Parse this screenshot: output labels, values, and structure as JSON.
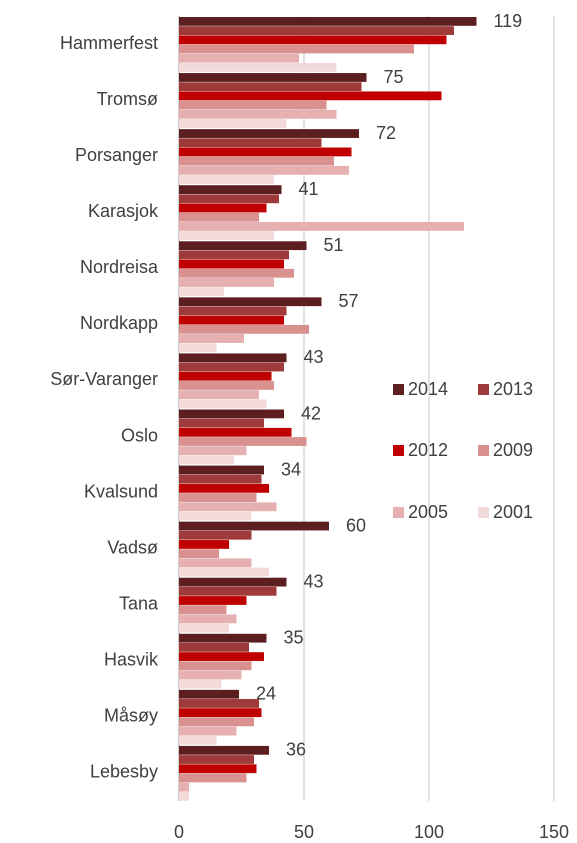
{
  "chart_data": {
    "type": "hbar",
    "categories": [
      "Hammerfest",
      "Tromsø",
      "Porsanger",
      "Karasjok",
      "Nordreisa",
      "Nordkapp",
      "Sør-Varanger",
      "Oslo",
      "Kvalsund",
      "Vadsø",
      "Tana",
      "Hasvik",
      "Måsøy",
      "Lebesby"
    ],
    "series": [
      {
        "name": "2014",
        "color": "#5c1e1e",
        "values": [
          119,
          75,
          72,
          41,
          51,
          57,
          43,
          42,
          34,
          60,
          43,
          35,
          24,
          36
        ]
      },
      {
        "name": "2013",
        "color": "#9e3a3a",
        "values": [
          110,
          73,
          57,
          40,
          44,
          43,
          42,
          34,
          33,
          29,
          39,
          28,
          32,
          30
        ]
      },
      {
        "name": "2012",
        "color": "#c00000",
        "values": [
          107,
          105,
          69,
          35,
          42,
          42,
          37,
          45,
          36,
          20,
          27,
          34,
          33,
          31
        ]
      },
      {
        "name": "2009",
        "color": "#d9918f",
        "values": [
          94,
          59,
          62,
          32,
          46,
          52,
          38,
          51,
          31,
          16,
          19,
          29,
          30,
          27
        ]
      },
      {
        "name": "2005",
        "color": "#e6b0b0",
        "values": [
          48,
          63,
          68,
          114,
          38,
          26,
          32,
          27,
          39,
          29,
          23,
          25,
          23,
          4
        ]
      },
      {
        "name": "2001",
        "color": "#f2dada",
        "values": [
          63,
          43,
          38,
          38,
          18,
          15,
          35,
          22,
          29,
          36,
          20,
          17,
          15,
          4
        ]
      }
    ],
    "data_labels_series": "2014",
    "xlim": [
      0,
      150
    ],
    "xticks": [
      0,
      50,
      100,
      150
    ],
    "grid": true,
    "legend_position": "right"
  }
}
